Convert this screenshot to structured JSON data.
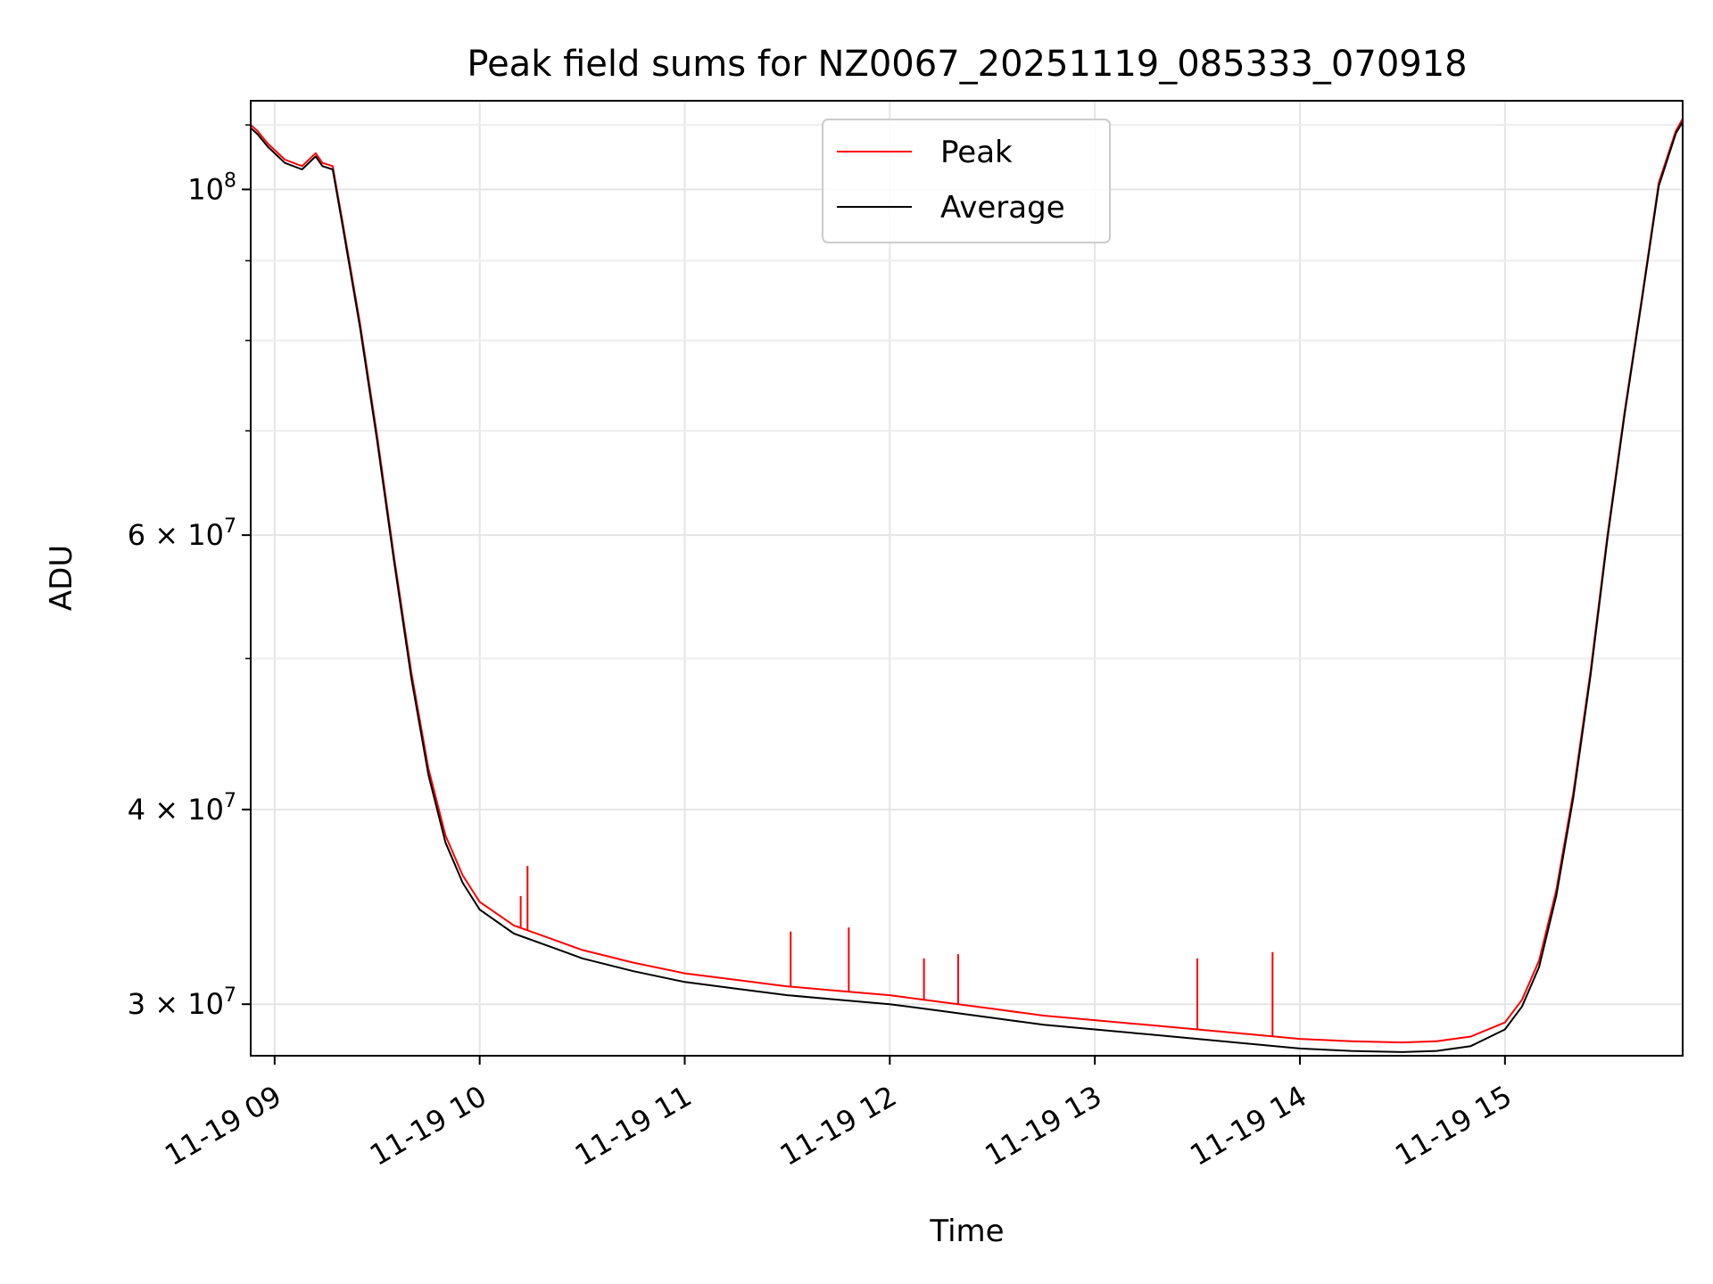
{
  "chart_data": {
    "type": "line",
    "title": "Peak field sums for NZ0067_20251119_085333_070918",
    "xlabel": "Time",
    "ylabel": "ADU",
    "xlim": [
      "11-19 08:53",
      "11-19 15:52"
    ],
    "ylim": [
      27800000,
      114000000
    ],
    "yscale": "log",
    "grid": true,
    "legend_position": "upper center",
    "x_ticks": [
      "11-19 09",
      "11-19 10",
      "11-19 11",
      "11-19 12",
      "11-19 13",
      "11-19 14",
      "11-19 15"
    ],
    "y_ticks": [
      {
        "value": 100000000,
        "base": "10",
        "exp": "8",
        "coef": ""
      },
      {
        "value": 60000000,
        "base": "10",
        "exp": "7",
        "coef": "6"
      },
      {
        "value": 40000000,
        "base": "10",
        "exp": "7",
        "coef": "4"
      },
      {
        "value": 30000000,
        "base": "10",
        "exp": "7",
        "coef": "3"
      }
    ],
    "times": [
      "11-19 08:53",
      "11-19 08:55",
      "11-19 08:58",
      "11-19 09:03",
      "11-19 09:08",
      "11-19 09:12",
      "11-19 09:14",
      "11-19 09:17",
      "11-19 09:20",
      "11-19 09:25",
      "11-19 09:30",
      "11-19 09:35",
      "11-19 09:40",
      "11-19 09:45",
      "11-19 09:50",
      "11-19 09:55",
      "11-19 10:00",
      "11-19 10:10",
      "11-19 10:20",
      "11-19 10:30",
      "11-19 10:45",
      "11-19 11:00",
      "11-19 11:15",
      "11-19 11:30",
      "11-19 11:45",
      "11-19 12:00",
      "11-19 12:15",
      "11-19 12:30",
      "11-19 12:45",
      "11-19 13:00",
      "11-19 13:15",
      "11-19 13:30",
      "11-19 13:45",
      "11-19 14:00",
      "11-19 14:15",
      "11-19 14:30",
      "11-19 14:40",
      "11-19 14:50",
      "11-19 15:00",
      "11-19 15:05",
      "11-19 15:10",
      "11-19 15:15",
      "11-19 15:20",
      "11-19 15:25",
      "11-19 15:30",
      "11-19 15:35",
      "11-19 15:40",
      "11-19 15:45",
      "11-19 15:50",
      "11-19 15:52"
    ],
    "series": [
      {
        "name": "Peak",
        "color": "#ff0000",
        "values": [
          110000000,
          109000000,
          107000000,
          104500000,
          103500000,
          105500000,
          104000000,
          103500000,
          95000000,
          82000000,
          69500000,
          58000000,
          49000000,
          42500000,
          38500000,
          36300000,
          34900000,
          33700000,
          33100000,
          32500000,
          31900000,
          31400000,
          31100000,
          30800000,
          30600000,
          30400000,
          30100000,
          29800000,
          29500000,
          29300000,
          29100000,
          28900000,
          28700000,
          28500000,
          28400000,
          28350000,
          28400000,
          28600000,
          29200000,
          30200000,
          32000000,
          35500000,
          41000000,
          49000000,
          60000000,
          72000000,
          85000000,
          101000000,
          109000000,
          111000000
        ],
        "spikes": [
          {
            "t": "11-19 10:14",
            "v": 36800000
          },
          {
            "t": "11-19 10:12",
            "v": 35200000
          },
          {
            "t": "11-19 11:31",
            "v": 33400000
          },
          {
            "t": "11-19 11:48",
            "v": 33600000
          },
          {
            "t": "11-19 12:10",
            "v": 32100000
          },
          {
            "t": "11-19 12:20",
            "v": 32300000
          },
          {
            "t": "11-19 13:30",
            "v": 32100000
          },
          {
            "t": "11-19 13:52",
            "v": 32400000
          }
        ]
      },
      {
        "name": "Average",
        "color": "#000000",
        "values": [
          109500000,
          108500000,
          106500000,
          104000000,
          103000000,
          105000000,
          103500000,
          103000000,
          94500000,
          81500000,
          69000000,
          57600000,
          48600000,
          42100000,
          38100000,
          35900000,
          34500000,
          33300000,
          32700000,
          32100000,
          31500000,
          31000000,
          30700000,
          30400000,
          30200000,
          30000000,
          29700000,
          29400000,
          29100000,
          28900000,
          28700000,
          28500000,
          28300000,
          28100000,
          28000000,
          27950000,
          28000000,
          28200000,
          28900000,
          29900000,
          31700000,
          35200000,
          40700000,
          48700000,
          59700000,
          71700000,
          84700000,
          100500000,
          108600000,
          110500000
        ]
      }
    ]
  }
}
